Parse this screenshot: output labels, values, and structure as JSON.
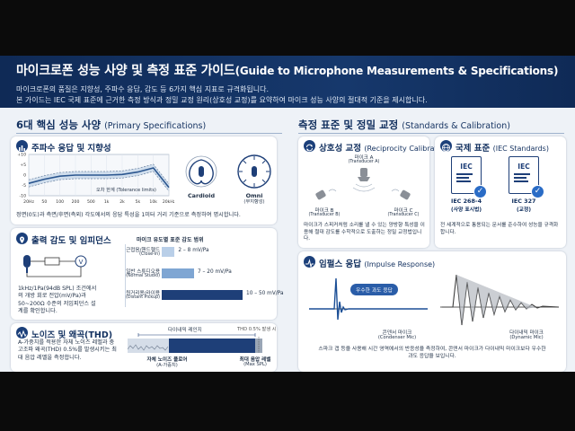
{
  "header": {
    "title_ko": "마이크로폰 성능 사양 및 측정 표준 가이드",
    "title_en": "(Guide to Microphone Measurements & Specifications)",
    "subtitle_1": "마이크로폰의 품질은 지향성, 주파수 응답, 감도 등 6가지 핵심 지표로 규격화됩니다.",
    "subtitle_2": "본 가이드는 IEC 국제 표준에 근거한 측정 방식과 정밀 교정 원리(상호성 교정)를 요약하여 마이크 성능 사양의 절대적 기준을 제시합니다."
  },
  "left_section": {
    "title_ko": "6대 핵심 성능 사양",
    "title_en": "(Primary Specifications)"
  },
  "right_section": {
    "title_ko": "측정 표준 및 정밀 교정",
    "title_en": "(Standards & Calibration)"
  },
  "freq_card": {
    "title": "주파수 응답 및 지향성",
    "tolerance_label": "오차 한계 (Tolerance limits)",
    "x_ticks": [
      "20Hz",
      "50",
      "100",
      "200",
      "500",
      "1k",
      "2k",
      "5k",
      "10k",
      "20kHz"
    ],
    "y_ticks": [
      "+10",
      "+5",
      "0",
      "-5",
      "-10"
    ],
    "response_db": [
      -4,
      -2,
      -0.5,
      0,
      0,
      0,
      0.3,
      1.5,
      3.5,
      -6
    ],
    "cardioid_label": "Cardioid",
    "omni_label": "Omni",
    "omni_sub": "(무지향성)",
    "note": "정면(0도)과 측면/후면(측외) 각도에서의 응답 특성을 1미터 거리 기준으로 측정하여 명시합니다."
  },
  "sens_card": {
    "title": "출력 감도 및 임피던스",
    "text": "1kHz/1Pa(94dB SPL) 조건에서의 개방 회로 전압(mV/Pa)과 50~200Ω 수준의 저임피던스 설계를 확인합니다.",
    "table_title": "마이크 유도별 표준 감도 범위",
    "rows": [
      {
        "ko": "근접음/핸드헬드",
        "en": "(Close-in)",
        "range": "2 – 8 mV/Pa",
        "value": 8
      },
      {
        "ko": "일반 스튜디오용",
        "en": "(Normal Studio)",
        "range": "7 – 20 mV/Pa",
        "value": 20
      },
      {
        "ko": "원거리용/라이용",
        "en": "(Distant Pickup)",
        "range": "10 – 50 mV/Pa",
        "value": 50
      }
    ],
    "max_value": 50,
    "colors": [
      "#b9cfe8",
      "#7fa6d3",
      "#1e3f78"
    ]
  },
  "noise_card": {
    "title": "노이즈 및 왜곡(THD)",
    "text": "A-가중치를 적용한 자체 노이즈 레벨과 충 고조파 왜곡(THD) 0.5%를 발생시키는 최대 음압 레벨을 측정합니다.",
    "dynamic_label": "다이내믹 레인지",
    "thd_label": "THD 0.5% 발생 시",
    "noise_floor_ko": "자체 노이즈 플로어",
    "noise_floor_en": "(A-가중치)",
    "max_spl_ko": "최대 음압 레벨",
    "max_spl_en": "(Max SPL)"
  },
  "reciprocity_card": {
    "title": "상호성 교정",
    "title_en": "(Reciprocity Calibration)",
    "mic_a": "마이크 A",
    "mic_a_en": "(Transducer A)",
    "mic_b": "마이크 B",
    "mic_b_en": "(Transducer B)",
    "mic_c": "마이크 C",
    "mic_c_en": "(Transducer C)",
    "text": "마이크가 스피커처럼 소리를 낼 수 있는 양방향 특성을 이용해 절대 감도를 수학적으로 도출하는 정밀 교정법입니다."
  },
  "iec_card": {
    "title": "국제 표준",
    "title_en": "(IEC Standards)",
    "docs": [
      {
        "code": "IEC 268-4",
        "desc": "(사양 표시법)"
      },
      {
        "code": "IEC 327",
        "desc": "(교정)"
      }
    ],
    "doc_label": "IEC",
    "text": "전 세계적으로 통용되는 문서를 준수하여 성능을 규격화합니다."
  },
  "impulse_card": {
    "title": "임펄스 응답",
    "title_en": "(Impulse Response)",
    "badge": "우수한 과도 응답",
    "condenser_ko": "콘덴서 마이크",
    "condenser_en": "(Condenser Mic)",
    "dynamic_ko": "다이내믹 마이크",
    "dynamic_en": "(Dynamic Mic)",
    "text": "스파크 갭 등을 사용해 시간 영역에서의 반응성을 측정하여, 콘덴서 마이크가 다이내믹 마이크보다 우수한 과도 응답을 보입니다."
  }
}
